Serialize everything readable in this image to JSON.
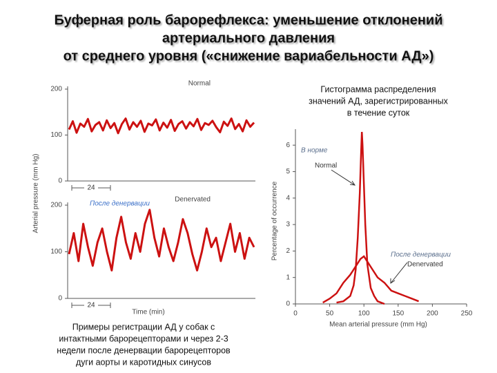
{
  "title_lines": [
    "Буферная роль барорефлекса: уменьшение отклонений",
    "артериального давления",
    "от среднего уровня («снижение вариабельности АД»)"
  ],
  "left_caption_lines": [
    "Примеры регистрации АД у собак с",
    "интактными барорецепторами и через 2-3",
    "недели после денервации барорецепторов",
    "дуги аорты и каротидных синусов"
  ],
  "right_caption_lines": [
    "Гистограмма распределения",
    "значений АД, зарегистрированных",
    "в течение суток"
  ],
  "chart_data": [
    {
      "type": "line",
      "ylabel": "Arterial pressure (mm Hg)",
      "annotations": [
        "Normal",
        "24"
      ],
      "color": "#cc1111",
      "values": [
        112,
        130,
        105,
        125,
        118,
        135,
        108,
        122,
        128,
        110,
        132,
        115,
        126,
        104,
        124,
        136,
        112,
        128,
        118,
        131,
        107,
        125,
        121,
        134,
        110,
        127,
        116,
        133,
        109,
        124,
        130,
        114,
        128,
        119,
        135,
        111,
        126,
        122,
        131,
        117,
        106,
        129,
        120,
        136,
        113,
        124,
        108,
        132,
        118,
        127
      ],
      "ylim": [
        0,
        200
      ],
      "yticks": [
        0,
        100,
        200
      ]
    },
    {
      "type": "line",
      "xlabel": "Time (min)",
      "annotations": [
        "Denervated",
        "После денервации",
        "24"
      ],
      "color": "#cc1111",
      "values": [
        95,
        140,
        80,
        160,
        110,
        70,
        120,
        150,
        100,
        60,
        130,
        175,
        120,
        85,
        140,
        100,
        160,
        190,
        130,
        90,
        150,
        110,
        80,
        120,
        170,
        140,
        95,
        60,
        100,
        150,
        110,
        130,
        80,
        120,
        160,
        100,
        140,
        85,
        130,
        110
      ],
      "ylim": [
        0,
        200
      ],
      "yticks": [
        0,
        100,
        200
      ]
    },
    {
      "type": "line",
      "xlabel": "Mean arterial pressure (mm Hg)",
      "ylabel": "Percentage of occurrence",
      "annotations": [
        "В норме",
        "Normal",
        "После денервации",
        "Denervated"
      ],
      "series": [
        {
          "name": "Normal",
          "color": "#cc1111",
          "x": [
            60,
            70,
            80,
            85,
            88,
            91,
            94,
            96,
            97,
            98,
            100,
            102,
            105,
            110,
            115,
            120,
            125,
            130
          ],
          "values": [
            0.05,
            0.1,
            0.3,
            0.7,
            1.3,
            2.5,
            4.2,
            5.8,
            6.5,
            6.0,
            4.5,
            3.0,
            1.5,
            0.6,
            0.3,
            0.1,
            0.05,
            0
          ]
        },
        {
          "name": "Denervated",
          "color": "#cc1111",
          "x": [
            40,
            50,
            60,
            70,
            80,
            90,
            95,
            100,
            105,
            110,
            120,
            130,
            140,
            150,
            160,
            170,
            180
          ],
          "values": [
            0.05,
            0.2,
            0.4,
            0.8,
            1.1,
            1.5,
            1.7,
            1.8,
            1.6,
            1.4,
            1.0,
            0.8,
            0.5,
            0.4,
            0.3,
            0.2,
            0.1
          ]
        }
      ],
      "xlim": [
        0,
        250
      ],
      "xticks": [
        0,
        50,
        100,
        150,
        200,
        250
      ],
      "ylim": [
        0,
        6.5
      ],
      "yticks": [
        0,
        1,
        2,
        3,
        4,
        5,
        6
      ]
    }
  ]
}
